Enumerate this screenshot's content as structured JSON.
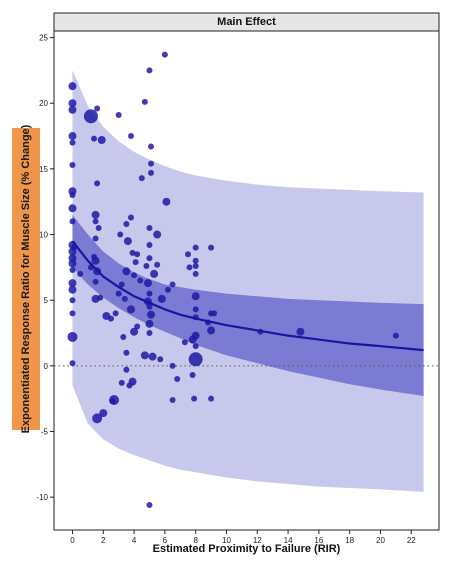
{
  "chart_data": {
    "type": "scatter",
    "title": "Main Effect",
    "xlabel": "Estimated Proximity to Failure (RIR)",
    "ylabel": "Exponentiated Response Ratio for Muscle Size (% Change)",
    "xlim": [
      -1.2,
      23.8
    ],
    "ylim": [
      -12.5,
      25.5
    ],
    "xticks": [
      0,
      2,
      4,
      6,
      8,
      10,
      12,
      14,
      16,
      18,
      20,
      22
    ],
    "yticks": [
      -10,
      -5,
      0,
      5,
      10,
      15,
      20,
      25
    ],
    "reference_line_y": 0,
    "colors": {
      "points": "#1f1aa6",
      "fit_line": "#1a14a0",
      "ci_band": "#6d6dcf",
      "pi_band": "#c8c8ec",
      "title_strip": "#e6e6e6",
      "ylabel_box": "#f0964a"
    },
    "fit": {
      "x": [
        0,
        1,
        2,
        3,
        4,
        5,
        6,
        7,
        8,
        10,
        12,
        14,
        16,
        18,
        20,
        22.8
      ],
      "y": [
        9.5,
        8.0,
        6.8,
        6.0,
        5.3,
        4.8,
        4.3,
        3.9,
        3.6,
        3.1,
        2.7,
        2.3,
        2.0,
        1.7,
        1.5,
        1.2
      ]
    },
    "confidence_band": {
      "x": [
        0,
        1,
        2,
        3,
        4,
        5,
        6,
        7,
        8,
        10,
        12,
        14,
        16,
        18,
        20,
        22.8
      ],
      "upper": [
        11.5,
        10.0,
        8.7,
        7.8,
        7.1,
        6.6,
        6.2,
        6.0,
        5.8,
        5.5,
        5.3,
        5.1,
        5.0,
        4.9,
        4.8,
        4.7
      ],
      "lower": [
        7.5,
        6.2,
        5.2,
        4.4,
        3.7,
        3.1,
        2.6,
        2.1,
        1.6,
        0.8,
        0.2,
        -0.4,
        -0.9,
        -1.4,
        -1.8,
        -2.3
      ]
    },
    "prediction_band": {
      "x": [
        0,
        1,
        2,
        3,
        4,
        5,
        6,
        7,
        8,
        10,
        12,
        14,
        16,
        18,
        20,
        22.8
      ],
      "upper": [
        22.5,
        19.8,
        18.2,
        17.1,
        16.3,
        15.7,
        15.2,
        14.8,
        14.5,
        14.1,
        13.8,
        13.6,
        13.5,
        13.4,
        13.3,
        13.2
      ],
      "lower": [
        -1.5,
        -4.4,
        -5.6,
        -6.3,
        -6.8,
        -7.2,
        -7.6,
        -7.9,
        -8.1,
        -8.5,
        -8.8,
        -9.0,
        -9.2,
        -9.3,
        -9.4,
        -9.6
      ]
    },
    "points": [
      {
        "x": 0,
        "y": 21.3,
        "size": 4
      },
      {
        "x": 0,
        "y": 20.0,
        "size": 4
      },
      {
        "x": 0,
        "y": 19.5,
        "size": 4
      },
      {
        "x": 0,
        "y": 17.5,
        "size": 4
      },
      {
        "x": 0,
        "y": 17.0,
        "size": 3
      },
      {
        "x": 0,
        "y": 15.3,
        "size": 3
      },
      {
        "x": 0,
        "y": 13.3,
        "size": 4
      },
      {
        "x": 0,
        "y": 13.0,
        "size": 3
      },
      {
        "x": 0,
        "y": 12.0,
        "size": 4
      },
      {
        "x": 0,
        "y": 11.0,
        "size": 3
      },
      {
        "x": 0,
        "y": 9.2,
        "size": 4
      },
      {
        "x": 0,
        "y": 8.7,
        "size": 4
      },
      {
        "x": 0,
        "y": 8.2,
        "size": 4
      },
      {
        "x": 0,
        "y": 7.8,
        "size": 4
      },
      {
        "x": 0,
        "y": 7.3,
        "size": 3
      },
      {
        "x": 0,
        "y": 6.3,
        "size": 4
      },
      {
        "x": 0,
        "y": 5.8,
        "size": 4
      },
      {
        "x": 0,
        "y": 5.0,
        "size": 3
      },
      {
        "x": 0,
        "y": 4.0,
        "size": 3
      },
      {
        "x": 0,
        "y": 2.2,
        "size": 5
      },
      {
        "x": 0,
        "y": 0.2,
        "size": 3
      },
      {
        "x": 0.1,
        "y": 9.0,
        "size": 3
      },
      {
        "x": 0.5,
        "y": 7.0,
        "size": 3
      },
      {
        "x": 1.2,
        "y": 19.0,
        "size": 7
      },
      {
        "x": 1.6,
        "y": 19.6,
        "size": 3
      },
      {
        "x": 1.9,
        "y": 17.2,
        "size": 4
      },
      {
        "x": 1.4,
        "y": 17.3,
        "size": 3
      },
      {
        "x": 1.6,
        "y": 13.9,
        "size": 3
      },
      {
        "x": 1.5,
        "y": 11.5,
        "size": 4
      },
      {
        "x": 1.5,
        "y": 11.0,
        "size": 3
      },
      {
        "x": 1.7,
        "y": 10.5,
        "size": 3
      },
      {
        "x": 1.5,
        "y": 9.7,
        "size": 3
      },
      {
        "x": 1.4,
        "y": 8.3,
        "size": 3
      },
      {
        "x": 1.5,
        "y": 8.0,
        "size": 4
      },
      {
        "x": 1.2,
        "y": 7.5,
        "size": 3
      },
      {
        "x": 1.6,
        "y": 7.2,
        "size": 4
      },
      {
        "x": 1.5,
        "y": 6.4,
        "size": 3
      },
      {
        "x": 1.5,
        "y": 5.1,
        "size": 4
      },
      {
        "x": 1.8,
        "y": 5.2,
        "size": 3
      },
      {
        "x": 2.2,
        "y": 3.8,
        "size": 4
      },
      {
        "x": 2.5,
        "y": 3.6,
        "size": 3
      },
      {
        "x": 1.6,
        "y": -4.0,
        "size": 5
      },
      {
        "x": 2.0,
        "y": -3.6,
        "size": 4
      },
      {
        "x": 2.6,
        "y": -2.7,
        "size": 3
      },
      {
        "x": 3.0,
        "y": 19.1,
        "size": 3
      },
      {
        "x": 3.5,
        "y": 10.8,
        "size": 3
      },
      {
        "x": 3.8,
        "y": 11.3,
        "size": 3
      },
      {
        "x": 3.1,
        "y": 10.0,
        "size": 3
      },
      {
        "x": 3.6,
        "y": 9.5,
        "size": 4
      },
      {
        "x": 3.5,
        "y": 7.2,
        "size": 4
      },
      {
        "x": 3.2,
        "y": 6.2,
        "size": 3
      },
      {
        "x": 3.0,
        "y": 5.5,
        "size": 3
      },
      {
        "x": 3.4,
        "y": 5.1,
        "size": 3
      },
      {
        "x": 2.8,
        "y": 4.0,
        "size": 3
      },
      {
        "x": 3.8,
        "y": 4.3,
        "size": 4
      },
      {
        "x": 3.3,
        "y": 2.2,
        "size": 3
      },
      {
        "x": 3.5,
        "y": 1.0,
        "size": 3
      },
      {
        "x": 3.5,
        "y": -0.3,
        "size": 3
      },
      {
        "x": 3.2,
        "y": -1.3,
        "size": 3
      },
      {
        "x": 2.7,
        "y": -2.6,
        "size": 5
      },
      {
        "x": 3.8,
        "y": 17.5,
        "size": 3
      },
      {
        "x": 4.2,
        "y": 8.5,
        "size": 3
      },
      {
        "x": 3.9,
        "y": 8.6,
        "size": 3
      },
      {
        "x": 4.1,
        "y": 7.9,
        "size": 3
      },
      {
        "x": 4.0,
        "y": 6.9,
        "size": 3
      },
      {
        "x": 4.4,
        "y": 6.5,
        "size": 3
      },
      {
        "x": 4.2,
        "y": 3.0,
        "size": 3
      },
      {
        "x": 4.0,
        "y": 2.6,
        "size": 4
      },
      {
        "x": 3.9,
        "y": -1.2,
        "size": 4
      },
      {
        "x": 3.7,
        "y": -1.5,
        "size": 3
      },
      {
        "x": 5.0,
        "y": 22.5,
        "size": 3
      },
      {
        "x": 4.7,
        "y": 20.1,
        "size": 3
      },
      {
        "x": 5.1,
        "y": 16.7,
        "size": 3
      },
      {
        "x": 5.1,
        "y": 15.4,
        "size": 3
      },
      {
        "x": 5.1,
        "y": 14.7,
        "size": 3
      },
      {
        "x": 4.5,
        "y": 14.3,
        "size": 3
      },
      {
        "x": 5.0,
        "y": 10.5,
        "size": 3
      },
      {
        "x": 5.0,
        "y": 9.2,
        "size": 3
      },
      {
        "x": 5.0,
        "y": 8.2,
        "size": 3
      },
      {
        "x": 4.8,
        "y": 7.6,
        "size": 3
      },
      {
        "x": 5.3,
        "y": 7.0,
        "size": 4
      },
      {
        "x": 4.9,
        "y": 6.3,
        "size": 4
      },
      {
        "x": 5.0,
        "y": 5.5,
        "size": 3
      },
      {
        "x": 4.9,
        "y": 4.9,
        "size": 4
      },
      {
        "x": 5.0,
        "y": 4.5,
        "size": 3
      },
      {
        "x": 5.1,
        "y": 3.9,
        "size": 4
      },
      {
        "x": 5.0,
        "y": 3.2,
        "size": 4
      },
      {
        "x": 5.0,
        "y": 2.5,
        "size": 3
      },
      {
        "x": 4.7,
        "y": 0.8,
        "size": 4
      },
      {
        "x": 5.2,
        "y": 0.7,
        "size": 4
      },
      {
        "x": 5.0,
        "y": -10.6,
        "size": 3
      },
      {
        "x": 5.5,
        "y": 10.0,
        "size": 4
      },
      {
        "x": 5.5,
        "y": 7.7,
        "size": 3
      },
      {
        "x": 5.8,
        "y": 5.1,
        "size": 4
      },
      {
        "x": 5.7,
        "y": 0.5,
        "size": 3
      },
      {
        "x": 6.0,
        "y": 23.7,
        "size": 3
      },
      {
        "x": 6.1,
        "y": 12.5,
        "size": 4
      },
      {
        "x": 6.5,
        "y": 6.2,
        "size": 3
      },
      {
        "x": 6.2,
        "y": 5.8,
        "size": 3
      },
      {
        "x": 6.5,
        "y": 0.0,
        "size": 3
      },
      {
        "x": 6.5,
        "y": -2.6,
        "size": 3
      },
      {
        "x": 6.8,
        "y": -1.0,
        "size": 3
      },
      {
        "x": 7.5,
        "y": 8.5,
        "size": 3
      },
      {
        "x": 7.6,
        "y": 7.5,
        "size": 3
      },
      {
        "x": 8.0,
        "y": 9.0,
        "size": 3
      },
      {
        "x": 8.0,
        "y": 8.0,
        "size": 3
      },
      {
        "x": 8.0,
        "y": 7.6,
        "size": 3
      },
      {
        "x": 8.0,
        "y": 7.0,
        "size": 3
      },
      {
        "x": 8.0,
        "y": 5.3,
        "size": 4
      },
      {
        "x": 8.0,
        "y": 4.3,
        "size": 3
      },
      {
        "x": 8.0,
        "y": 3.7,
        "size": 3
      },
      {
        "x": 8.0,
        "y": 2.3,
        "size": 4
      },
      {
        "x": 8.0,
        "y": 1.5,
        "size": 3
      },
      {
        "x": 8.0,
        "y": 0.5,
        "size": 7
      },
      {
        "x": 7.8,
        "y": 2.0,
        "size": 4
      },
      {
        "x": 7.3,
        "y": 1.8,
        "size": 3
      },
      {
        "x": 7.8,
        "y": -0.7,
        "size": 3
      },
      {
        "x": 7.9,
        "y": -2.5,
        "size": 3
      },
      {
        "x": 9.0,
        "y": 9.0,
        "size": 3
      },
      {
        "x": 9.0,
        "y": 4.0,
        "size": 3
      },
      {
        "x": 9.2,
        "y": 4.0,
        "size": 3
      },
      {
        "x": 8.8,
        "y": 3.3,
        "size": 3
      },
      {
        "x": 9.0,
        "y": 2.7,
        "size": 4
      },
      {
        "x": 9.0,
        "y": -2.5,
        "size": 3
      },
      {
        "x": 12.2,
        "y": 2.6,
        "size": 3
      },
      {
        "x": 14.8,
        "y": 2.6,
        "size": 4
      },
      {
        "x": 21.0,
        "y": 2.3,
        "size": 3
      }
    ]
  }
}
